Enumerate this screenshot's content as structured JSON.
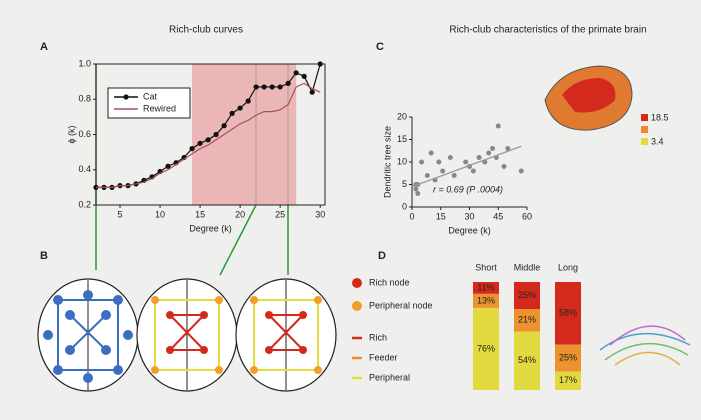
{
  "headings": {
    "left": "Rich-club curves",
    "right": "Rich-club characteristics of the primate brain"
  },
  "panel_letters": [
    "A",
    "B",
    "C",
    "D"
  ],
  "panel_b": {
    "legend": [
      "Rich node",
      "Peripheral node",
      "Rich",
      "Feeder",
      "Peripheral"
    ],
    "colors": [
      "#d42a1e",
      "#f0a02a",
      "#d42a1e",
      "#ef8a2c",
      "#e4dc3c"
    ]
  },
  "inset_legend": [
    "18.5",
    "3.4"
  ],
  "chart_data": [
    {
      "type": "line",
      "x_label": "Degree (k)",
      "y_label": "ϕ (k)",
      "x": [
        2,
        3,
        4,
        5,
        6,
        7,
        8,
        9,
        10,
        11,
        12,
        13,
        14,
        15,
        16,
        17,
        18,
        19,
        20,
        21,
        22,
        23,
        24,
        25,
        26,
        27,
        28,
        29,
        30
      ],
      "series": [
        {
          "name": "Cat",
          "color": "#111111",
          "values": [
            0.3,
            0.3,
            0.3,
            0.31,
            0.31,
            0.32,
            0.34,
            0.36,
            0.39,
            0.42,
            0.44,
            0.47,
            0.52,
            0.55,
            0.57,
            0.6,
            0.65,
            0.72,
            0.75,
            0.79,
            0.87,
            0.87,
            0.87,
            0.87,
            0.89,
            0.95,
            0.93,
            0.84,
            1.0
          ]
        },
        {
          "name": "Rewired",
          "color": "#a8505c",
          "values": [
            0.3,
            0.3,
            0.3,
            0.31,
            0.31,
            0.32,
            0.33,
            0.35,
            0.38,
            0.4,
            0.43,
            0.46,
            0.49,
            0.52,
            0.54,
            0.57,
            0.6,
            0.63,
            0.66,
            0.68,
            0.71,
            0.73,
            0.73,
            0.74,
            0.77,
            0.87,
            0.89,
            0.86,
            0.84
          ]
        }
      ],
      "shade": [
        14,
        27
      ],
      "shade_color": "#e8a8a8",
      "xlim": [
        2,
        30.6
      ],
      "xticks": [
        5,
        10,
        15,
        20,
        25,
        30
      ],
      "ylim": [
        0.2,
        1.0
      ],
      "yticks": [
        0.2,
        0.4,
        0.6,
        0.8,
        {
          "value": 1,
          "label": "1.0"
        }
      ]
    },
    {
      "type": "scatter",
      "x_label": "Degree (k)",
      "y_label": "Dendritic tree size",
      "annotation": "r = 0.69 (P .0004)",
      "color": "#888888",
      "x": [
        2,
        2,
        3,
        3,
        5,
        8,
        10,
        12,
        14,
        16,
        20,
        22,
        28,
        30,
        32,
        35,
        38,
        40,
        42,
        44,
        45,
        48,
        50,
        57
      ],
      "values": [
        4,
        5,
        3,
        5,
        10,
        7,
        12,
        6,
        10,
        8,
        11,
        7,
        10,
        9,
        8,
        11,
        10,
        12,
        13,
        11,
        18,
        9,
        13,
        8
      ],
      "fit": {
        "x": [
          0,
          57
        ],
        "y": [
          4.5,
          13.5
        ]
      },
      "xlim": [
        0,
        60
      ],
      "xticks": [
        0,
        15,
        30,
        45,
        60
      ],
      "ylim": [
        0,
        20
      ],
      "yticks": [
        0,
        5,
        10,
        15,
        20
      ]
    },
    {
      "type": "stacked_bar",
      "categories": [
        "Short",
        "Middle",
        "Long"
      ],
      "series": [
        {
          "name": "Rich",
          "color": "#d42a1e",
          "values": [
            11,
            25,
            58
          ],
          "value_labels": [
            "11%",
            "25%",
            "58%"
          ]
        },
        {
          "name": "Feeder",
          "color": "#ec922e",
          "values": [
            13,
            21,
            25
          ],
          "value_labels": [
            "13%",
            "21%",
            "25%"
          ]
        },
        {
          "name": "Peripheral",
          "color": "#e2da3e",
          "values": [
            76,
            54,
            17
          ],
          "value_labels": [
            "76%",
            "54%",
            "17%"
          ]
        }
      ]
    }
  ]
}
